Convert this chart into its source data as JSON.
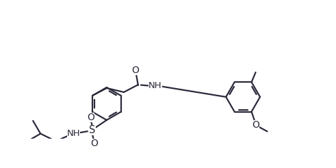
{
  "bg_color": "#ffffff",
  "line_color": "#2a2a3a",
  "line_width": 1.6,
  "figsize": [
    4.91,
    2.46
  ],
  "dpi": 100,
  "r1cx": 3.1,
  "r1cy": 0.52,
  "r1": 0.48,
  "rot1": 90,
  "r2cx": 7.1,
  "r2cy": 0.72,
  "r2": 0.5,
  "rot2": 0,
  "xlim": [
    0,
    9.8
  ],
  "ylim": [
    -0.5,
    2.7
  ]
}
